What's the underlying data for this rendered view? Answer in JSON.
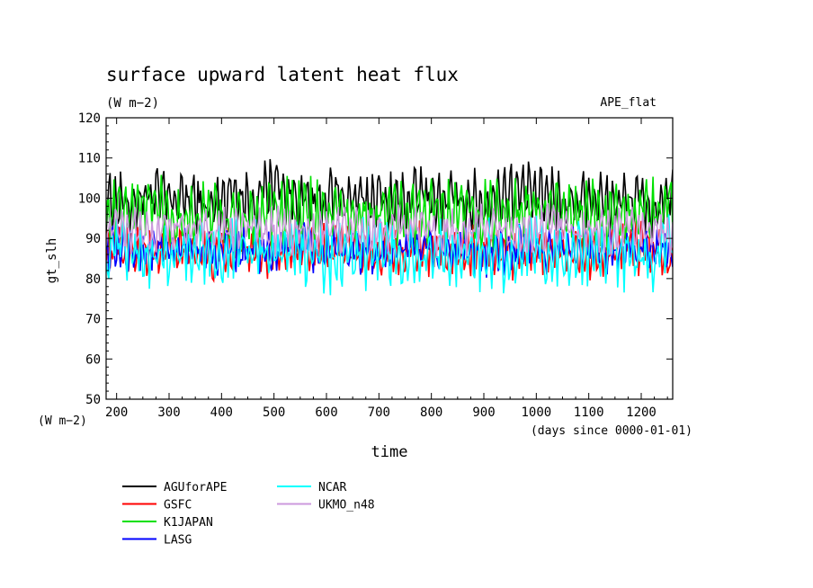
{
  "chart_data": {
    "type": "line",
    "title": "surface upward latent heat flux",
    "units": "(W m−2)",
    "tag": "APE_flat",
    "xlabel": "time",
    "xunits": "(days since 0000-01-01)",
    "ylabel": "gt_slh",
    "yunits": "(W m−2)",
    "xlim": [
      180,
      1260
    ],
    "ylim": [
      50,
      120
    ],
    "xticks": [
      200,
      300,
      400,
      500,
      600,
      700,
      800,
      900,
      1000,
      1100,
      1200
    ],
    "yticks": [
      50,
      60,
      70,
      80,
      90,
      100,
      110,
      120
    ],
    "grid": false,
    "legend_position": "bottom-left",
    "x": [
      180,
      220,
      260,
      300,
      340,
      380,
      420,
      460,
      500,
      540,
      580,
      620,
      660,
      700,
      740,
      780,
      820,
      860,
      900,
      940,
      980,
      1020,
      1060,
      1100,
      1140,
      1180,
      1220,
      1260
    ],
    "series": [
      {
        "name": "AGUforAPE",
        "color": "#000000",
        "values": [
          100,
          98,
          101,
          99,
          100,
          97,
          102,
          99,
          104,
          100,
          98,
          101,
          99,
          100,
          98,
          101,
          99,
          100,
          98,
          102,
          101,
          100,
          99,
          101,
          98,
          100,
          97,
          99
        ],
        "range": [
          90,
          110
        ]
      },
      {
        "name": "GSFC",
        "color": "#ff0000",
        "values": [
          87,
          88,
          86,
          87,
          88,
          85,
          87,
          88,
          86,
          87,
          86,
          88,
          87,
          86,
          87,
          88,
          86,
          87,
          88,
          86,
          87,
          88,
          87,
          86,
          87,
          88,
          87,
          86
        ],
        "range": [
          79,
          95
        ]
      },
      {
        "name": "K1JAPAN",
        "color": "#00e000",
        "values": [
          96,
          97,
          99,
          96,
          95,
          96,
          94,
          96,
          97,
          95,
          96,
          97,
          95,
          96,
          97,
          96,
          95,
          97,
          96,
          96,
          98,
          97,
          96,
          95,
          96,
          97,
          96,
          98
        ],
        "range": [
          85,
          108
        ]
      },
      {
        "name": "LASG",
        "color": "#0000ff",
        "values": [
          87,
          86,
          87,
          86,
          88,
          87,
          86,
          87,
          86,
          88,
          87,
          86,
          87,
          86,
          87,
          88,
          86,
          87,
          86,
          87,
          88,
          86,
          87,
          88,
          86,
          87,
          88,
          87
        ],
        "range": [
          80,
          95
        ]
      },
      {
        "name": "NCAR",
        "color": "#00ffff",
        "values": [
          86,
          87,
          85,
          86,
          87,
          86,
          88,
          86,
          85,
          87,
          86,
          85,
          86,
          87,
          86,
          85,
          86,
          87,
          86,
          85,
          87,
          86,
          85,
          86,
          87,
          85,
          84,
          88
        ],
        "range": [
          74,
          96
        ]
      },
      {
        "name": "UKMO_n48",
        "color": "#cc99dd",
        "values": [
          92,
          93,
          91,
          92,
          93,
          91,
          92,
          93,
          92,
          91,
          92,
          93,
          92,
          91,
          93,
          92,
          91,
          92,
          93,
          92,
          91,
          93,
          92,
          91,
          92,
          93,
          92,
          91
        ],
        "range": [
          84,
          99
        ]
      }
    ]
  }
}
